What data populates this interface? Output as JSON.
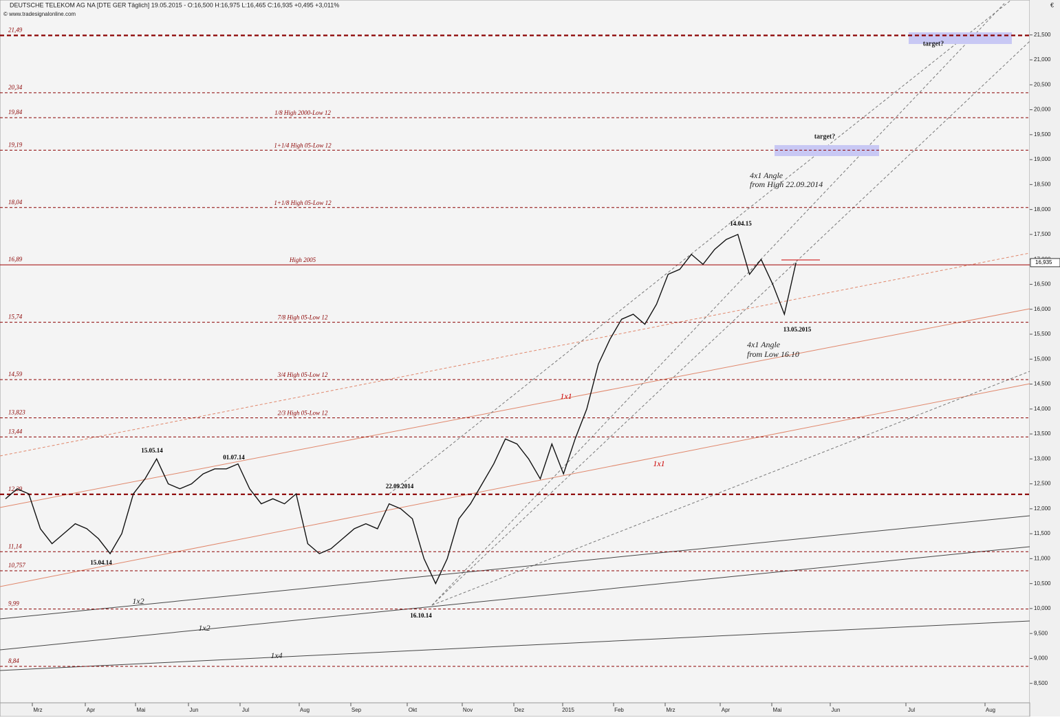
{
  "header": {
    "title": "DEUTSCHE TELEKOM AG NA [DTE GER  Täglich] 19.05.2015 - O:16,500 H:16,975 L:16,465 C:16,935 +0,495 +3,011%",
    "source": "© www.tradesignalonline.com",
    "currency": "€"
  },
  "chart_data": {
    "type": "line",
    "color": "#111111",
    "values": [
      12.2,
      12.4,
      12.3,
      11.6,
      11.3,
      11.5,
      11.7,
      11.6,
      11.4,
      11.1,
      11.5,
      12.3,
      12.6,
      13.0,
      12.5,
      12.4,
      12.5,
      12.7,
      12.8,
      12.8,
      12.9,
      12.4,
      12.1,
      12.2,
      12.1,
      12.3,
      11.3,
      11.1,
      11.2,
      11.4,
      11.6,
      11.7,
      11.6,
      12.1,
      12.0,
      11.8,
      11.0,
      10.5,
      11.0,
      11.8,
      12.1,
      12.5,
      12.9,
      13.4,
      13.3,
      13.0,
      12.6,
      13.3,
      12.7,
      13.4,
      14.0,
      14.9,
      15.4,
      15.8,
      15.9,
      15.7,
      16.1,
      16.7,
      16.8,
      17.1,
      16.9,
      17.2,
      17.4,
      17.5,
      16.7,
      17.0,
      16.5,
      15.9,
      16.935
    ],
    "months": [
      "Mrz",
      "Apr",
      "Mai",
      "Jun",
      "Jul",
      "Aug",
      "Sep",
      "Okt",
      "Nov",
      "Dez",
      "2015",
      "Feb",
      "Mrz",
      "Apr",
      "Mai",
      "Jun",
      "Jul",
      "Aug"
    ],
    "ylim": [
      8.11,
      22.2
    ],
    "yticks": [
      {
        "value": 8.5,
        "label": "8,500"
      },
      {
        "value": 9,
        "label": "9,000"
      },
      {
        "value": 9.5,
        "label": "9,500"
      },
      {
        "value": 10,
        "label": "10,000"
      },
      {
        "value": 10.5,
        "label": "10,500"
      },
      {
        "value": 11,
        "label": "11,000"
      },
      {
        "value": 11.5,
        "label": "11,500"
      },
      {
        "value": 12,
        "label": "12,000"
      },
      {
        "value": 12.5,
        "label": "12,500"
      },
      {
        "value": 13,
        "label": "13,000"
      },
      {
        "value": 13.5,
        "label": "13,500"
      },
      {
        "value": 14,
        "label": "14,000"
      },
      {
        "value": 14.5,
        "label": "14,500"
      },
      {
        "value": 15,
        "label": "15,000"
      },
      {
        "value": 15.5,
        "label": "15,500"
      },
      {
        "value": 16,
        "label": "16,000"
      },
      {
        "value": 16.5,
        "label": "16,500"
      },
      {
        "value": 17,
        "label": "17,000"
      },
      {
        "value": 17.5,
        "label": "17,500"
      },
      {
        "value": 18,
        "label": "18,000"
      },
      {
        "value": 18.5,
        "label": "18,500"
      },
      {
        "value": 19,
        "label": "19,000"
      },
      {
        "value": 19.5,
        "label": "19,500"
      },
      {
        "value": 20,
        "label": "20,000"
      },
      {
        "value": 20.5,
        "label": "20,500"
      },
      {
        "value": 21,
        "label": "21,000"
      },
      {
        "value": 21.5,
        "label": "21,500"
      }
    ],
    "levels": [
      {
        "value": 21.49,
        "label": "21,49",
        "style": "thick"
      },
      {
        "value": 20.34,
        "label": "20,34",
        "style": "dashed"
      },
      {
        "value": 19.84,
        "label": "19,84",
        "style": "dashed",
        "name": "1/8 High 2000-Low 12"
      },
      {
        "value": 19.19,
        "label": "19,19",
        "style": "dashed",
        "name": "1+1/4 High 05-Low 12"
      },
      {
        "value": 18.04,
        "label": "18,04",
        "style": "dashed",
        "name": "1+1/8 High 05-Low 12"
      },
      {
        "value": 16.89,
        "label": "16,89",
        "style": "solid",
        "name": "High 2005"
      },
      {
        "value": 15.74,
        "label": "15,74",
        "style": "dashed",
        "name": "7/8 High 05-Low 12"
      },
      {
        "value": 14.59,
        "label": "14,59",
        "style": "dashed",
        "name": "3/4 High 05-Low 12"
      },
      {
        "value": 13.823,
        "label": "13,823",
        "style": "dashed",
        "name": "2/3 High 05-Low 12"
      },
      {
        "value": 13.44,
        "label": "13,44",
        "style": "dashed"
      },
      {
        "value": 12.29,
        "label": "12,29",
        "style": "thick"
      },
      {
        "value": 11.14,
        "label": "11,14",
        "style": "dashed"
      },
      {
        "value": 10.757,
        "label": "10,757",
        "style": "dashed"
      },
      {
        "value": 9.99,
        "label": "9,99",
        "style": "dashed"
      },
      {
        "value": 8.84,
        "label": "8,84",
        "style": "dashed"
      }
    ],
    "last": {
      "value": 16.935,
      "label": "16,935"
    },
    "annotations": [
      "15.05.14",
      "01.07.14",
      "15.04.14",
      "22.09.2014",
      "16.10.14",
      "14.04.15",
      "13.05.2015",
      "4x1 Angle",
      "from High 22.09.2014",
      "4x1 Angle",
      "from Low 16.10",
      "1x1",
      "1x1",
      "1x2",
      "1x2",
      "1x4",
      "target?",
      "target?"
    ]
  }
}
